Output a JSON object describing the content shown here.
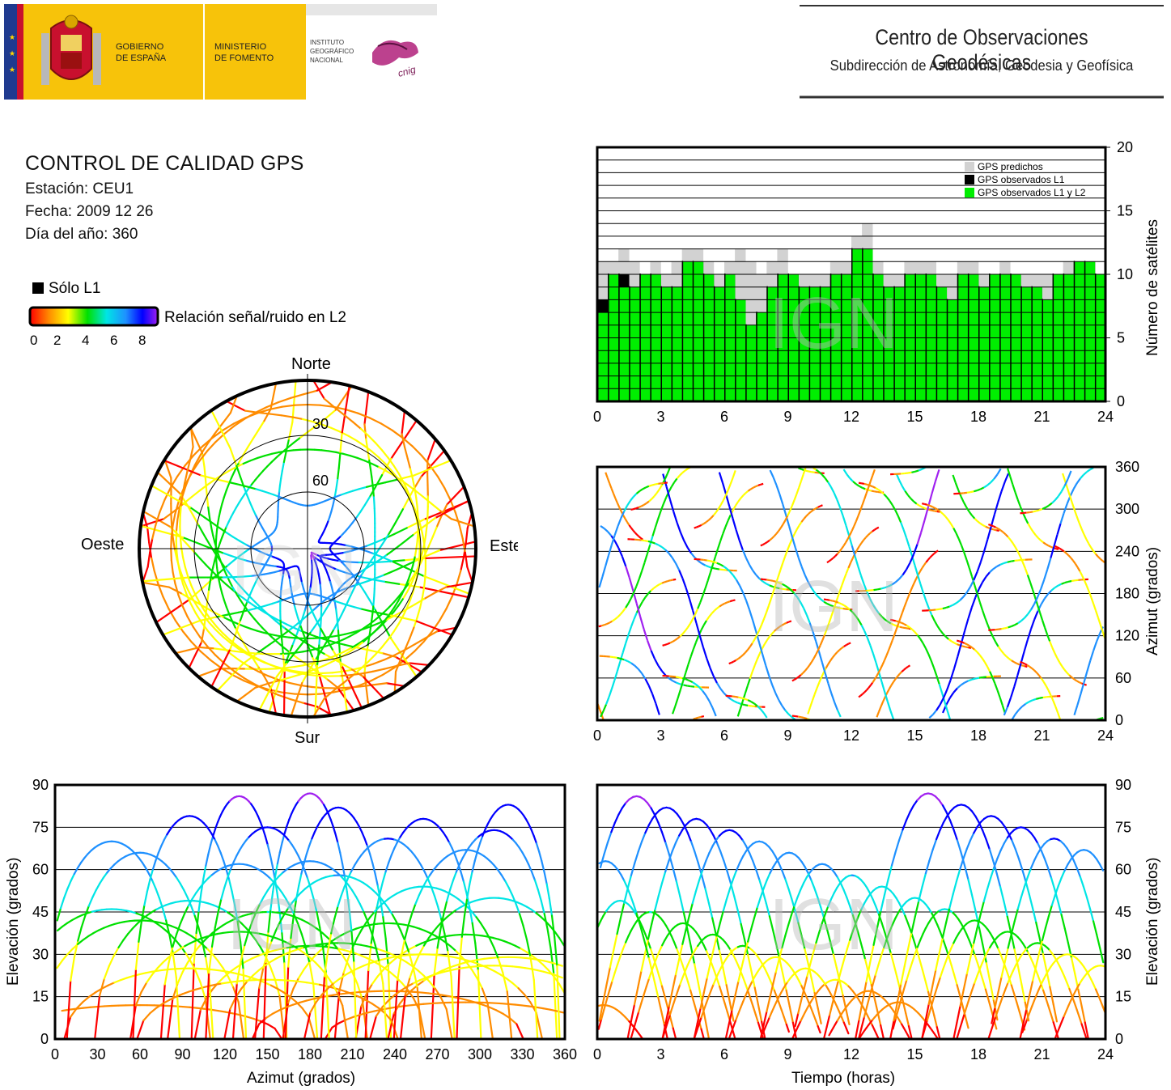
{
  "header": {
    "gov_line1": "GOBIERNO",
    "gov_line2": "DE ESPAÑA",
    "min_line1": "MINISTERIO",
    "min_line2": "DE FOMENTO",
    "ign_line1": "INSTITUTO",
    "ign_line2": "GEOGRÁFICO",
    "ign_line3": "NACIONAL",
    "cnig_logo": "cnig",
    "center_title": "Centro de Observaciones Geodésicas",
    "center_subtitle": "Subdirección de Astronomía, Geodesia y Geofísica"
  },
  "info": {
    "title": "CONTROL DE CALIDAD GPS",
    "station": "Estación: CEU1",
    "date": "Fecha: 2009 12 26",
    "doy": "Día del año: 360"
  },
  "legend": {
    "l1_only": "Sólo L1",
    "colorbar_label": "Relación señal/ruido en L2",
    "colorbar_ticks": [
      "0",
      "2",
      "4",
      "6",
      "8"
    ]
  },
  "watermark": "IGN",
  "colors": {
    "predicted": "#d2d2d2",
    "observed_l1": "#000000",
    "observed_l1_l2": "#00ee00",
    "snr_scale": [
      "#000000",
      "#ff0000",
      "#ff8c00",
      "#ffff00",
      "#00e000",
      "#00e5e5",
      "#1e90ff",
      "#0000ff",
      "#a020f0"
    ]
  },
  "chart_data": [
    {
      "id": "skyplot",
      "type": "scatter",
      "projection": "polar",
      "labels": {
        "north": "Norte",
        "south": "Sur",
        "east": "Este",
        "west": "Oeste"
      },
      "elevation_rings": [
        30,
        60
      ],
      "elevation_ring_labels": [
        "30",
        "60"
      ],
      "color_by": "snr_l2"
    },
    {
      "id": "satellites",
      "type": "area",
      "ylabel": "Número de satélites",
      "xticks": [
        "0",
        "3",
        "6",
        "9",
        "12",
        "15",
        "18",
        "21",
        "24"
      ],
      "yticks": [
        "0",
        "5",
        "10",
        "15",
        "20"
      ],
      "xlim": [
        0,
        24
      ],
      "ylim": [
        0,
        20
      ],
      "legend_position": "top-right",
      "hours": [
        0,
        0.5,
        1,
        1.5,
        2,
        2.5,
        3,
        3.5,
        4,
        4.5,
        5,
        5.5,
        6,
        6.5,
        7,
        7.5,
        8,
        8.5,
        9,
        9.5,
        10,
        10.5,
        11,
        11.5,
        12,
        12.5,
        13,
        13.5,
        14,
        14.5,
        15,
        15.5,
        16,
        16.5,
        17,
        17.5,
        18,
        18.5,
        19,
        19.5,
        20,
        20.5,
        21,
        21.5,
        22,
        22.5,
        23,
        23.5
      ],
      "series": [
        {
          "name": "GPS predichos",
          "values": [
            11,
            11,
            12,
            11,
            10,
            11,
            10,
            11,
            12,
            12,
            11,
            10,
            11,
            12,
            11,
            10,
            11,
            12,
            10,
            10,
            10,
            10,
            11,
            11,
            13,
            14,
            11,
            10,
            10,
            11,
            11,
            11,
            10,
            10,
            11,
            11,
            10,
            10,
            11,
            10,
            10,
            10,
            10,
            10,
            11,
            11,
            11,
            10
          ]
        },
        {
          "name": "GPS observados L1",
          "values": [
            8,
            10,
            10,
            9,
            10,
            10,
            9,
            9,
            11,
            11,
            10,
            9,
            10,
            8,
            6,
            7,
            9,
            10,
            10,
            9,
            9,
            9,
            10,
            10,
            12,
            12,
            10,
            9,
            9,
            10,
            10,
            10,
            9,
            8,
            10,
            10,
            9,
            10,
            10,
            10,
            9,
            9,
            8,
            10,
            10,
            11,
            11,
            10
          ]
        },
        {
          "name": "GPS observados L1 y L2",
          "values": [
            7,
            10,
            9,
            9,
            10,
            10,
            9,
            9,
            11,
            11,
            10,
            9,
            10,
            8,
            6,
            7,
            9,
            10,
            10,
            9,
            9,
            9,
            10,
            10,
            12,
            12,
            10,
            9,
            9,
            10,
            10,
            10,
            9,
            8,
            10,
            10,
            9,
            10,
            10,
            10,
            9,
            9,
            8,
            10,
            10,
            11,
            11,
            10
          ]
        }
      ]
    },
    {
      "id": "azimuth-time",
      "type": "scatter",
      "ylabel": "Azimut (grados)",
      "xticks": [
        "0",
        "3",
        "6",
        "9",
        "12",
        "15",
        "18",
        "21",
        "24"
      ],
      "yticks": [
        "0",
        "60",
        "120",
        "180",
        "240",
        "300",
        "360"
      ],
      "xlim": [
        0,
        24
      ],
      "ylim": [
        0,
        360
      ],
      "color_by": "snr_l2"
    },
    {
      "id": "elevation-azimuth",
      "type": "scatter",
      "xlabel": "Azimut (grados)",
      "ylabel": "Elevación (grados)",
      "xticks": [
        "0",
        "30",
        "60",
        "90",
        "120",
        "150",
        "180",
        "210",
        "240",
        "270",
        "300",
        "330",
        "360"
      ],
      "yticks": [
        "0",
        "15",
        "30",
        "45",
        "60",
        "75",
        "90"
      ],
      "xlim": [
        0,
        360
      ],
      "ylim": [
        0,
        90
      ],
      "color_by": "snr_l2"
    },
    {
      "id": "elevation-time",
      "type": "scatter",
      "xlabel": "Tiempo (horas)",
      "ylabel": "Elevación (grados)",
      "xticks": [
        "0",
        "3",
        "6",
        "9",
        "12",
        "15",
        "18",
        "21",
        "24"
      ],
      "yticks": [
        "0",
        "15",
        "30",
        "45",
        "60",
        "75",
        "90"
      ],
      "xlim": [
        0,
        24
      ],
      "ylim": [
        0,
        90
      ],
      "color_by": "snr_l2"
    }
  ]
}
